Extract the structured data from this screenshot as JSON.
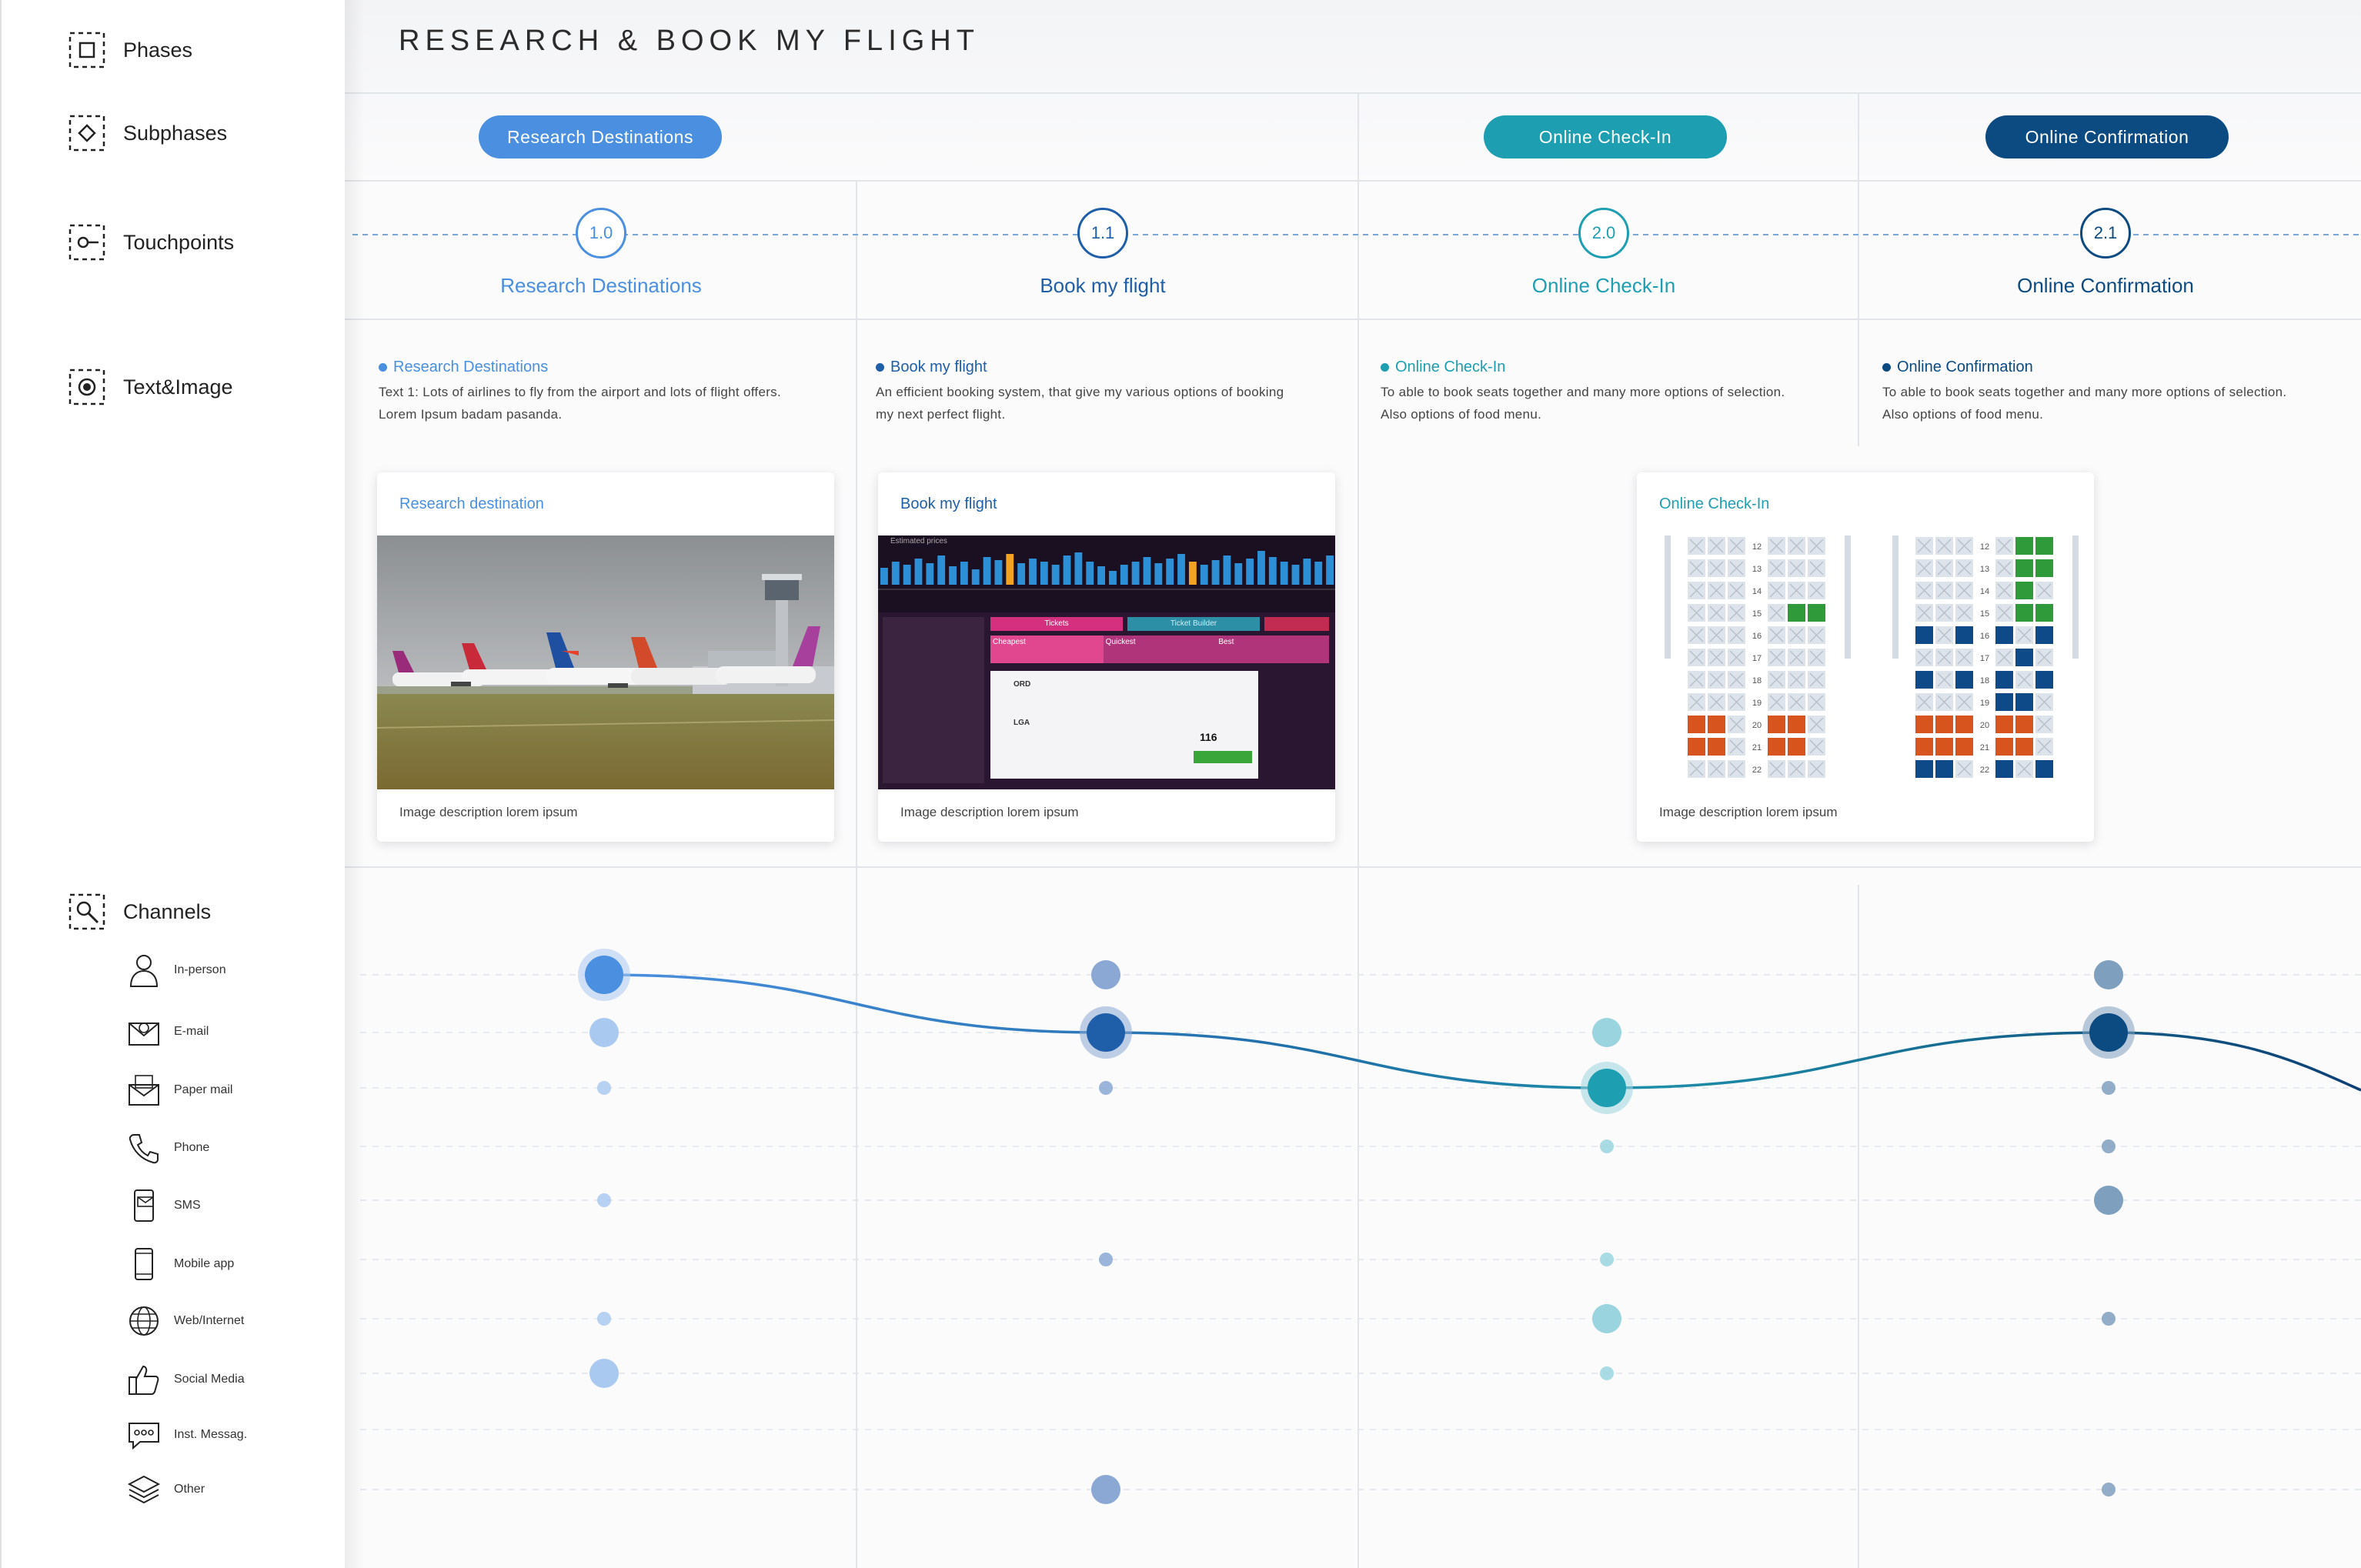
{
  "title": "RESEARCH & BOOK MY FLIGHT",
  "sidebar": {
    "rows": [
      {
        "label": "Phases",
        "icon": "phases-icon"
      },
      {
        "label": "Subphases",
        "icon": "subphases-icon"
      },
      {
        "label": "Touchpoints",
        "icon": "touchpoints-icon"
      },
      {
        "label": "Text&Image",
        "icon": "text-image-icon"
      },
      {
        "label": "Channels",
        "icon": "channels-icon"
      }
    ],
    "channels": [
      {
        "label": "In-person",
        "icon": "person-icon"
      },
      {
        "label": "E-mail",
        "icon": "email-icon"
      },
      {
        "label": "Paper mail",
        "icon": "paper-mail-icon"
      },
      {
        "label": "Phone",
        "icon": "phone-icon"
      },
      {
        "label": "SMS",
        "icon": "sms-icon"
      },
      {
        "label": "Mobile app",
        "icon": "mobile-icon"
      },
      {
        "label": "Web/Internet",
        "icon": "globe-icon"
      },
      {
        "label": "Social Media",
        "icon": "thumbs-up-icon"
      },
      {
        "label": "Inst. Messag.",
        "icon": "chat-icon"
      },
      {
        "label": "Other",
        "icon": "layers-icon"
      }
    ]
  },
  "phases": [
    {
      "label": "Research Destinations",
      "color": "#4a8fe0"
    },
    {
      "label": "Online Check-In",
      "color": "#1e9eb1"
    },
    {
      "label": "Online Confirmation",
      "color": "#0c4a82"
    }
  ],
  "touchpoints": [
    {
      "number": "1.0",
      "title": "Research Destinations",
      "color": "#4a8fe0",
      "desc_title": "Research Destinations",
      "desc_lines": [
        "Text 1: Lots of airlines to fly from the airport and lots of flight offers.",
        "Lorem Ipsum badam pasanda."
      ]
    },
    {
      "number": "1.1",
      "title": "Book my flight",
      "color": "#1f5ea8",
      "desc_title": "Book my flight",
      "desc_lines": [
        "An efficient booking system, that give my various options of booking",
        "my next perfect flight."
      ]
    },
    {
      "number": "2.0",
      "title": "Online Check-In",
      "color": "#1e9eb1",
      "desc_title": "Online Check-In",
      "desc_lines": [
        "To able to book seats together and many more options of selection.",
        "Also options of food menu."
      ]
    },
    {
      "number": "2.1",
      "title": "Online Confirmation",
      "color": "#0c4a82",
      "desc_title": "Online Confirmation",
      "desc_lines": [
        "To able to book seats together and many more options of selection.",
        "Also options of food menu."
      ]
    }
  ],
  "cards": [
    {
      "title": "Research destination",
      "caption": "Image description lorem ipsum",
      "color": "#4a8fe0"
    },
    {
      "title": "Book my flight",
      "caption": "Image description lorem ipsum",
      "color": "#1f5ea8"
    },
    {
      "title": "Online Check-In",
      "caption": "Image description lorem ipsum",
      "color": "#1e9eb1"
    }
  ],
  "flight_screen": {
    "label": "Estimated prices",
    "tab_tickets": "Tickets",
    "tab_builder": "Ticket Builder",
    "options": [
      "Cheapest",
      "Quickest",
      "Best"
    ],
    "route_1": "ORD",
    "route_2": "LGA",
    "price": "116"
  },
  "seat_rows": [
    "12",
    "13",
    "14",
    "15",
    "16",
    "17",
    "18",
    "19",
    "20",
    "21",
    "22"
  ],
  "channel_grid": {
    "columns": [
      "1.0",
      "1.1",
      "2.0",
      "2.1"
    ],
    "journey_path": [
      1,
      2,
      3,
      2
    ],
    "dots": [
      {
        "col": 0,
        "channel": 0,
        "size": "active"
      },
      {
        "col": 0,
        "channel": 1,
        "size": "medium"
      },
      {
        "col": 0,
        "channel": 2,
        "size": "small"
      },
      {
        "col": 0,
        "channel": 4,
        "size": "small"
      },
      {
        "col": 0,
        "channel": 6,
        "size": "small"
      },
      {
        "col": 0,
        "channel": 7,
        "size": "medium"
      },
      {
        "col": 1,
        "channel": 0,
        "size": "medium"
      },
      {
        "col": 1,
        "channel": 1,
        "size": "active"
      },
      {
        "col": 1,
        "channel": 2,
        "size": "small"
      },
      {
        "col": 1,
        "channel": 5,
        "size": "small"
      },
      {
        "col": 1,
        "channel": 9,
        "size": "medium"
      },
      {
        "col": 2,
        "channel": 1,
        "size": "medium"
      },
      {
        "col": 2,
        "channel": 2,
        "size": "active"
      },
      {
        "col": 2,
        "channel": 3,
        "size": "small"
      },
      {
        "col": 2,
        "channel": 5,
        "size": "small"
      },
      {
        "col": 2,
        "channel": 6,
        "size": "medium"
      },
      {
        "col": 2,
        "channel": 7,
        "size": "small"
      },
      {
        "col": 3,
        "channel": 0,
        "size": "medium"
      },
      {
        "col": 3,
        "channel": 1,
        "size": "active"
      },
      {
        "col": 3,
        "channel": 2,
        "size": "small"
      },
      {
        "col": 3,
        "channel": 3,
        "size": "small"
      },
      {
        "col": 3,
        "channel": 4,
        "size": "medium"
      },
      {
        "col": 3,
        "channel": 6,
        "size": "small"
      },
      {
        "col": 3,
        "channel": 9,
        "size": "small"
      }
    ]
  }
}
